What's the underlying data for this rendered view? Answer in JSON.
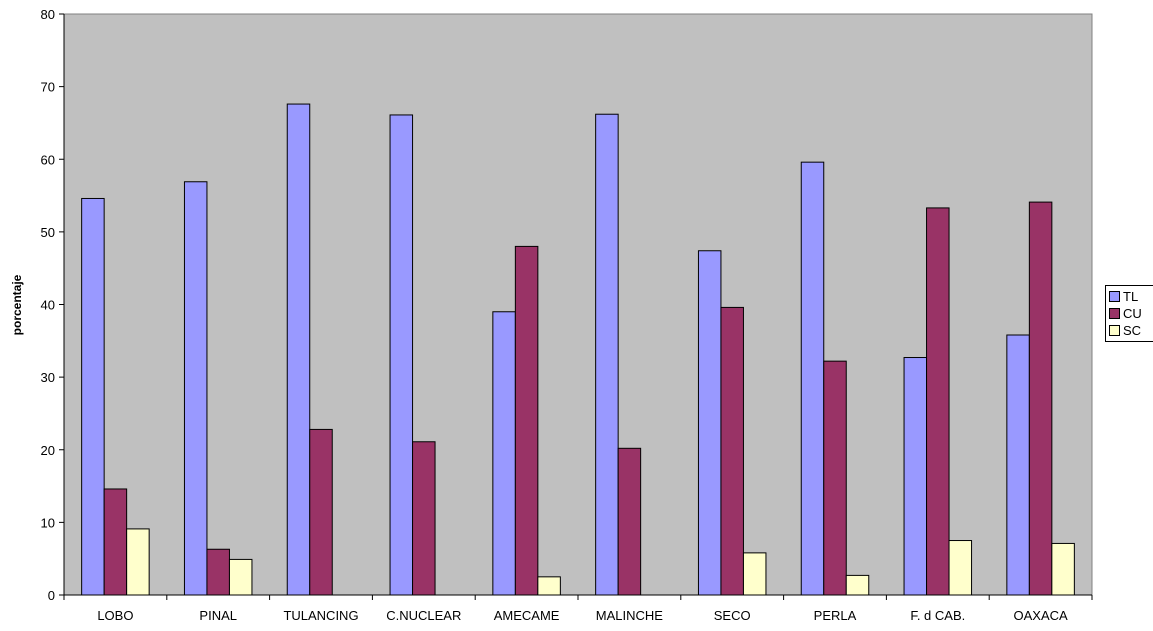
{
  "chart_data": {
    "type": "bar",
    "title": "",
    "xlabel": "",
    "ylabel": "porcentaje",
    "ylim": [
      0,
      80
    ],
    "yticks": [
      0,
      10,
      20,
      30,
      40,
      50,
      60,
      70,
      80
    ],
    "grid": false,
    "legend_position": "right",
    "categories": [
      "LOBO",
      "PINAL",
      "TULANCING",
      "C.NUCLEAR",
      "AMECAME",
      "MALINCHE",
      "SECO",
      "PERLA",
      "F. d CAB.",
      "OAXACA"
    ],
    "series": [
      {
        "name": "TL",
        "color": "#9999FF",
        "values": [
          54.6,
          56.9,
          67.6,
          66.1,
          39.0,
          66.2,
          47.4,
          59.6,
          32.7,
          35.8
        ]
      },
      {
        "name": "CU",
        "color": "#993366",
        "values": [
          14.6,
          6.3,
          22.8,
          21.1,
          48.0,
          20.2,
          39.6,
          32.2,
          53.3,
          54.1
        ]
      },
      {
        "name": "SC",
        "color": "#FFFFCC",
        "values": [
          9.1,
          4.9,
          0,
          0,
          2.5,
          0,
          5.8,
          2.7,
          7.5,
          7.1
        ]
      }
    ],
    "plot_background": "#C0C0C0"
  }
}
